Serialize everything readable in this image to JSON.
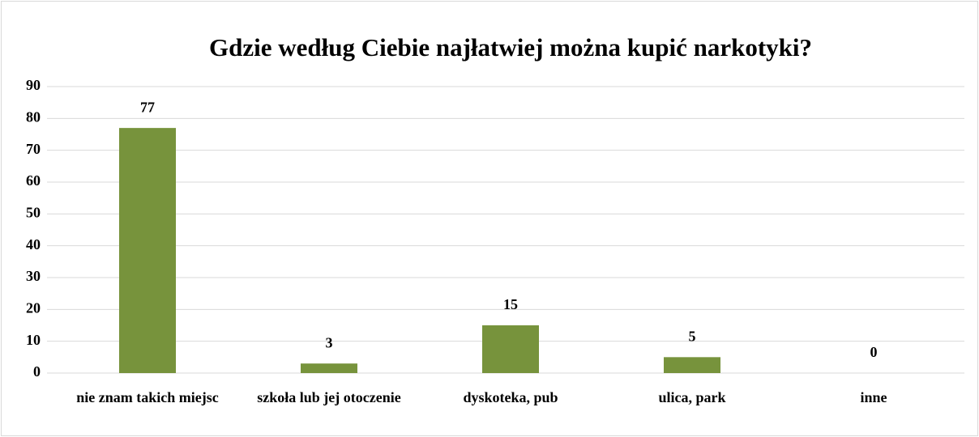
{
  "chart_data": {
    "type": "bar",
    "title": "Gdzie według Ciebie najłatwiej można kupić narkotyki?",
    "categories": [
      "nie znam takich miejsc",
      "szkoła lub jej otoczenie",
      "dyskoteka, pub",
      "ulica, park",
      "inne"
    ],
    "values": [
      77,
      3,
      15,
      5,
      0
    ],
    "color": "#77933c",
    "ylim": [
      0,
      90
    ],
    "yticks": [
      0,
      10,
      20,
      30,
      40,
      50,
      60,
      70,
      80,
      90
    ],
    "grid": true
  }
}
